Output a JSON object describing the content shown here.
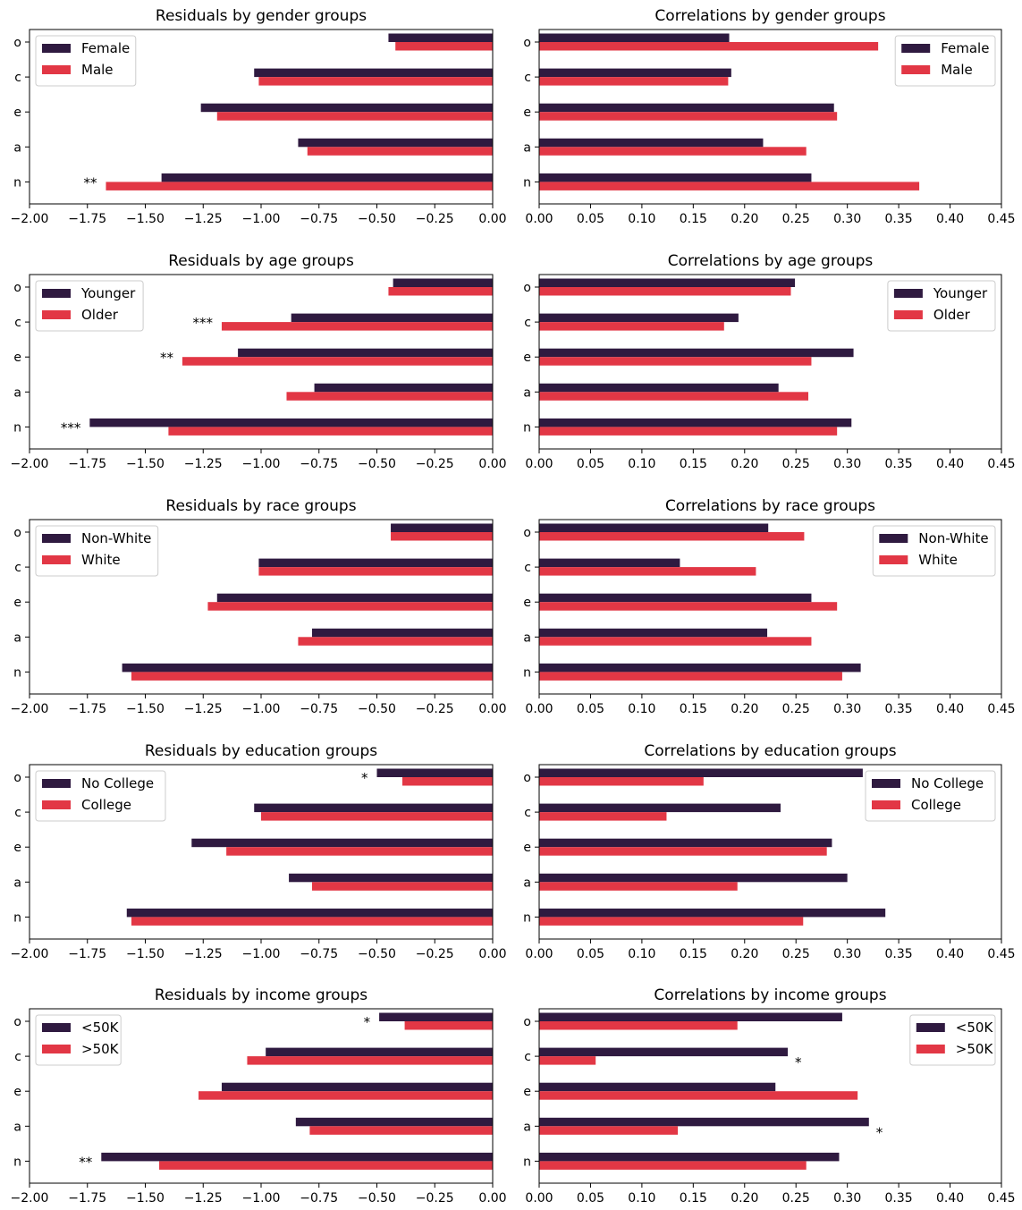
{
  "colors": {
    "series_a": "#2f1a40",
    "series_b": "#e23745"
  },
  "categories": [
    "o",
    "c",
    "e",
    "a",
    "n"
  ],
  "chart_data": [
    {
      "type": "bar",
      "orientation": "horizontal",
      "title": "Residuals by gender groups",
      "xlim": [
        -2.0,
        0.0
      ],
      "xticks": [
        "−2.00",
        "−1.75",
        "−1.50",
        "−1.25",
        "−1.00",
        "−0.75",
        "−0.50",
        "−0.25",
        "0.00"
      ],
      "legend": "top-left",
      "series": [
        {
          "name": "Female",
          "values": [
            -0.45,
            -1.03,
            -1.26,
            -0.84,
            -1.43
          ]
        },
        {
          "name": "Male",
          "values": [
            -0.42,
            -1.01,
            -1.19,
            -0.8,
            -1.67
          ]
        }
      ],
      "annotations": [
        {
          "category": "n",
          "text": "**"
        }
      ]
    },
    {
      "type": "bar",
      "orientation": "horizontal",
      "title": "Correlations by gender groups",
      "xlim": [
        0.0,
        0.45
      ],
      "xticks": [
        "0.00",
        "0.05",
        "0.10",
        "0.15",
        "0.20",
        "0.25",
        "0.30",
        "0.35",
        "0.40",
        "0.45"
      ],
      "legend": "top-right",
      "series": [
        {
          "name": "Female",
          "values": [
            0.185,
            0.187,
            0.287,
            0.218,
            0.265
          ]
        },
        {
          "name": "Male",
          "values": [
            0.33,
            0.184,
            0.29,
            0.26,
            0.37
          ]
        }
      ],
      "annotations": []
    },
    {
      "type": "bar",
      "orientation": "horizontal",
      "title": "Residuals by age groups",
      "xlim": [
        -2.0,
        0.0
      ],
      "xticks": [
        "−2.00",
        "−1.75",
        "−1.50",
        "−1.25",
        "−1.00",
        "−0.75",
        "−0.50",
        "−0.25",
        "0.00"
      ],
      "legend": "top-left",
      "series": [
        {
          "name": "Younger",
          "values": [
            -0.43,
            -0.87,
            -1.1,
            -0.77,
            -1.74
          ]
        },
        {
          "name": "Older",
          "values": [
            -0.45,
            -1.17,
            -1.34,
            -0.89,
            -1.4
          ]
        }
      ],
      "annotations": [
        {
          "category": "c",
          "text": "***"
        },
        {
          "category": "e",
          "text": "**"
        },
        {
          "category": "n",
          "text": "***"
        }
      ]
    },
    {
      "type": "bar",
      "orientation": "horizontal",
      "title": "Correlations by age groups",
      "xlim": [
        0.0,
        0.45
      ],
      "xticks": [
        "0.00",
        "0.05",
        "0.10",
        "0.15",
        "0.20",
        "0.25",
        "0.30",
        "0.35",
        "0.40",
        "0.45"
      ],
      "legend": "top-right",
      "series": [
        {
          "name": "Younger",
          "values": [
            0.249,
            0.194,
            0.306,
            0.233,
            0.304
          ]
        },
        {
          "name": "Older",
          "values": [
            0.245,
            0.18,
            0.265,
            0.262,
            0.29
          ]
        }
      ],
      "annotations": []
    },
    {
      "type": "bar",
      "orientation": "horizontal",
      "title": "Residuals by race groups",
      "xlim": [
        -2.0,
        0.0
      ],
      "xticks": [
        "−2.00",
        "−1.75",
        "−1.50",
        "−1.25",
        "−1.00",
        "−0.75",
        "−0.50",
        "−0.25",
        "0.00"
      ],
      "legend": "top-left",
      "series": [
        {
          "name": "Non-White",
          "values": [
            -0.44,
            -1.01,
            -1.19,
            -0.78,
            -1.6
          ]
        },
        {
          "name": "White",
          "values": [
            -0.44,
            -1.01,
            -1.23,
            -0.84,
            -1.56
          ]
        }
      ],
      "annotations": []
    },
    {
      "type": "bar",
      "orientation": "horizontal",
      "title": "Correlations by race groups",
      "xlim": [
        0.0,
        0.45
      ],
      "xticks": [
        "0.00",
        "0.05",
        "0.10",
        "0.15",
        "0.20",
        "0.25",
        "0.30",
        "0.35",
        "0.40",
        "0.45"
      ],
      "legend": "top-right",
      "series": [
        {
          "name": "Non-White",
          "values": [
            0.223,
            0.137,
            0.265,
            0.222,
            0.313
          ]
        },
        {
          "name": "White",
          "values": [
            0.258,
            0.211,
            0.29,
            0.265,
            0.295
          ]
        }
      ],
      "annotations": []
    },
    {
      "type": "bar",
      "orientation": "horizontal",
      "title": "Residuals by education groups",
      "xlim": [
        -2.0,
        0.0
      ],
      "xticks": [
        "−2.00",
        "−1.75",
        "−1.50",
        "−1.25",
        "−1.00",
        "−0.75",
        "−0.50",
        "−0.25",
        "0.00"
      ],
      "legend": "top-left",
      "series": [
        {
          "name": "No College",
          "values": [
            -0.5,
            -1.03,
            -1.3,
            -0.88,
            -1.58
          ]
        },
        {
          "name": "College",
          "values": [
            -0.39,
            -1.0,
            -1.15,
            -0.78,
            -1.56
          ]
        }
      ],
      "annotations": [
        {
          "category": "o",
          "text": "*"
        }
      ]
    },
    {
      "type": "bar",
      "orientation": "horizontal",
      "title": "Correlations by education groups",
      "xlim": [
        0.0,
        0.45
      ],
      "xticks": [
        "0.00",
        "0.05",
        "0.10",
        "0.15",
        "0.20",
        "0.25",
        "0.30",
        "0.35",
        "0.40",
        "0.45"
      ],
      "legend": "top-right",
      "series": [
        {
          "name": "No College",
          "values": [
            0.315,
            0.235,
            0.285,
            0.3,
            0.337
          ]
        },
        {
          "name": "College",
          "values": [
            0.16,
            0.124,
            0.28,
            0.193,
            0.257
          ]
        }
      ],
      "annotations": []
    },
    {
      "type": "bar",
      "orientation": "horizontal",
      "title": "Residuals by income groups",
      "xlim": [
        -2.0,
        0.0
      ],
      "xticks": [
        "−2.00",
        "−1.75",
        "−1.50",
        "−1.25",
        "−1.00",
        "−0.75",
        "−0.50",
        "−0.25",
        "0.00"
      ],
      "legend": "top-left",
      "series": [
        {
          "name": "<50K",
          "values": [
            -0.49,
            -0.98,
            -1.17,
            -0.85,
            -1.69
          ]
        },
        {
          "name": ">50K",
          "values": [
            -0.38,
            -1.06,
            -1.27,
            -0.79,
            -1.44
          ]
        }
      ],
      "annotations": [
        {
          "category": "o",
          "text": "*"
        },
        {
          "category": "n",
          "text": "**"
        }
      ]
    },
    {
      "type": "bar",
      "orientation": "horizontal",
      "title": "Correlations by income groups",
      "xlim": [
        0.0,
        0.45
      ],
      "xticks": [
        "0.00",
        "0.05",
        "0.10",
        "0.15",
        "0.20",
        "0.25",
        "0.30",
        "0.35",
        "0.40",
        "0.45"
      ],
      "legend": "top-right",
      "series": [
        {
          "name": "<50K",
          "values": [
            0.295,
            0.242,
            0.23,
            0.321,
            0.292
          ]
        },
        {
          "name": ">50K",
          "values": [
            0.193,
            0.055,
            0.31,
            0.135,
            0.26
          ]
        }
      ],
      "annotations": [
        {
          "category": "c",
          "text": "*"
        },
        {
          "category": "a",
          "text": "*"
        }
      ]
    }
  ]
}
